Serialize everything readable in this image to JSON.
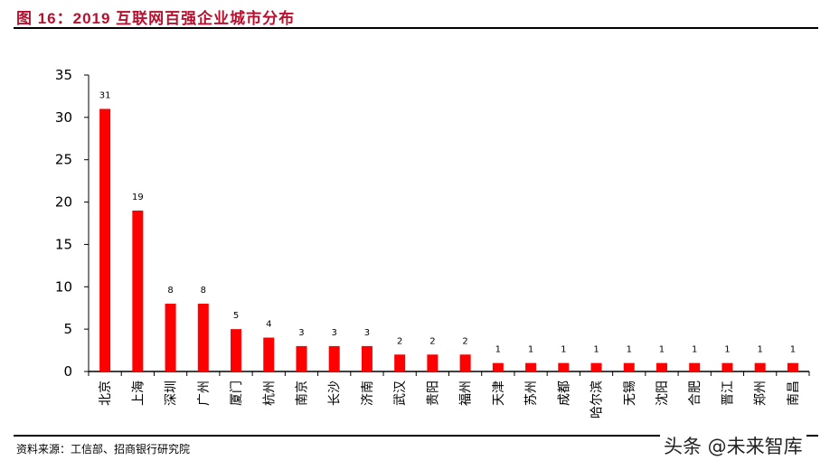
{
  "header": {
    "title": "图 16：2019 互联网百强企业城市分布"
  },
  "footer": {
    "source": "资料来源：工信部、招商银行研究院",
    "watermark": "头条 @未来智库"
  },
  "colors": {
    "bar": "#ff0000",
    "title": "#b8102e",
    "axis": "#000000"
  },
  "chart_data": {
    "type": "bar",
    "title": "2019 互联网百强企业城市分布",
    "xlabel": "",
    "ylabel": "",
    "ylim": [
      0,
      35
    ],
    "yticks": [
      0,
      5,
      10,
      15,
      20,
      25,
      30,
      35
    ],
    "grid": false,
    "legend": null,
    "data_labels": true,
    "categories": [
      "北京",
      "上海",
      "深圳",
      "广州",
      "厦门",
      "杭州",
      "南京",
      "长沙",
      "济南",
      "武汉",
      "贵阳",
      "福州",
      "天津",
      "苏州",
      "成都",
      "哈尔滨",
      "无锡",
      "沈阳",
      "合肥",
      "晋江",
      "郑州",
      "南昌"
    ],
    "values": [
      31,
      19,
      8,
      8,
      5,
      4,
      3,
      3,
      3,
      2,
      2,
      2,
      1,
      1,
      1,
      1,
      1,
      1,
      1,
      1,
      1,
      1
    ]
  }
}
